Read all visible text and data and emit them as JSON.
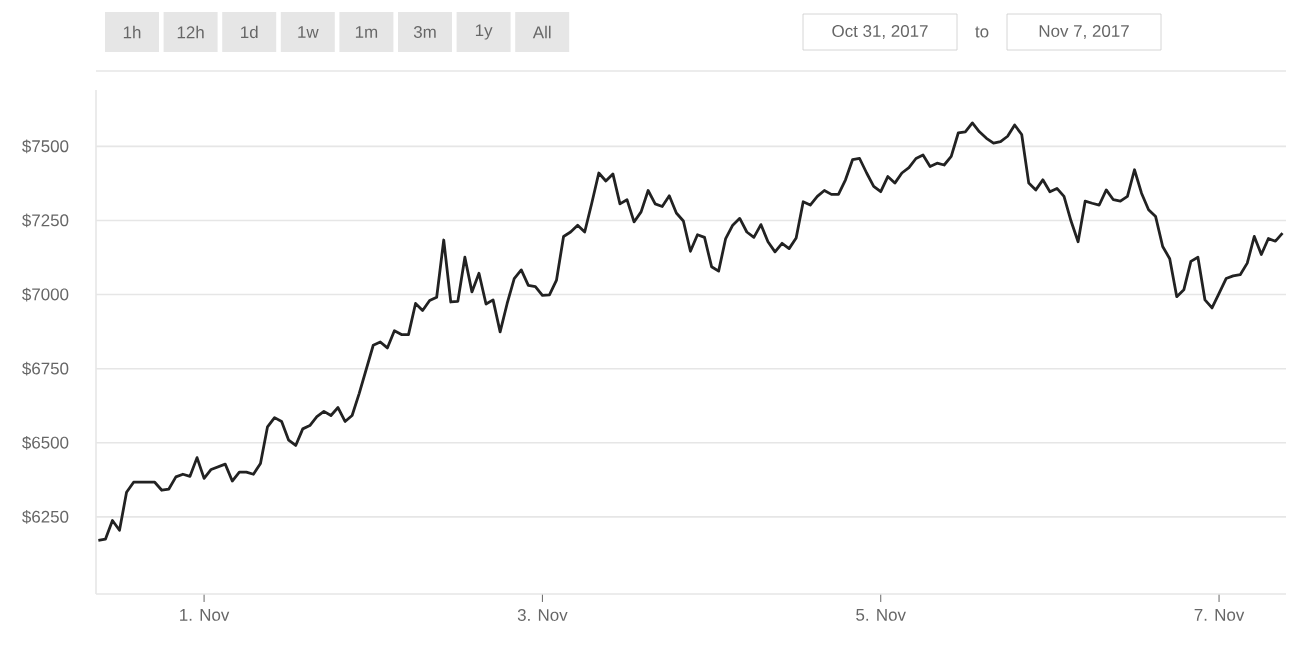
{
  "chart_data": {
    "type": "line",
    "annotations": [
      "1h",
      "12h",
      "1d",
      "1w",
      "1m",
      "3m",
      "1y",
      "All",
      "Oct 31, 2017",
      "to",
      "Nov 7, 2017"
    ],
    "x": [
      "2017-10-31T09:00",
      "2017-10-31T10:00",
      "2017-10-31T11:00",
      "2017-10-31T12:00",
      "2017-10-31T13:00",
      "2017-10-31T14:00",
      "2017-10-31T17:00",
      "2017-10-31T18:00",
      "2017-10-31T19:00",
      "2017-10-31T20:00",
      "2017-10-31T21:00",
      "2017-10-31T22:00",
      "2017-10-31T23:00",
      "2017-11-01T00:00",
      "2017-11-01T01:00",
      "2017-11-01T03:00",
      "2017-11-01T04:00",
      "2017-11-01T05:00",
      "2017-11-01T06:00",
      "2017-11-01T07:00",
      "2017-11-01T08:00",
      "2017-11-01T09:00",
      "2017-11-01T10:00",
      "2017-11-01T11:00",
      "2017-11-01T12:00",
      "2017-11-01T13:00",
      "2017-11-01T14:00",
      "2017-11-01T15:00",
      "2017-11-01T16:00",
      "2017-11-01T17:00",
      "2017-11-01T18:00",
      "2017-11-01T19:00",
      "2017-11-01T20:00",
      "2017-11-01T21:00",
      "2017-11-01T22:00",
      "2017-11-02T00:00",
      "2017-11-02T01:00",
      "2017-11-02T02:00",
      "2017-11-02T03:00",
      "2017-11-02T04:00",
      "2017-11-02T05:00",
      "2017-11-02T06:00",
      "2017-11-02T07:00",
      "2017-11-02T08:00",
      "2017-11-02T09:00",
      "2017-11-02T10:00",
      "2017-11-02T11:00",
      "2017-11-02T12:00",
      "2017-11-02T13:00",
      "2017-11-02T14:00",
      "2017-11-02T15:00",
      "2017-11-02T16:00",
      "2017-11-02T17:00",
      "2017-11-02T18:00",
      "2017-11-02T19:00",
      "2017-11-02T20:00",
      "2017-11-02T21:00",
      "2017-11-02T22:00",
      "2017-11-02T23:00",
      "2017-11-03T00:00",
      "2017-11-03T01:00",
      "2017-11-03T02:00",
      "2017-11-03T03:00",
      "2017-11-03T04:00",
      "2017-11-03T05:00",
      "2017-11-03T06:00",
      "2017-11-03T07:00",
      "2017-11-03T08:00",
      "2017-11-03T09:00",
      "2017-11-03T10:00",
      "2017-11-03T11:00",
      "2017-11-03T12:00",
      "2017-11-03T13:00",
      "2017-11-03T14:00",
      "2017-11-03T15:00",
      "2017-11-03T16:00",
      "2017-11-03T17:00",
      "2017-11-03T18:00",
      "2017-11-03T19:00",
      "2017-11-03T20:00",
      "2017-11-03T21:00",
      "2017-11-03T22:00",
      "2017-11-03T23:00",
      "2017-11-04T00:00",
      "2017-11-04T01:00",
      "2017-11-04T02:00",
      "2017-11-04T03:00",
      "2017-11-04T04:00",
      "2017-11-04T05:00",
      "2017-11-04T06:00",
      "2017-11-04T07:00",
      "2017-11-04T08:00",
      "2017-11-04T09:00",
      "2017-11-04T10:00",
      "2017-11-04T11:00",
      "2017-11-04T12:00",
      "2017-11-04T13:00",
      "2017-11-04T14:00",
      "2017-11-04T15:00",
      "2017-11-04T16:00",
      "2017-11-04T17:00",
      "2017-11-04T18:00",
      "2017-11-04T19:00",
      "2017-11-04T20:00",
      "2017-11-04T21:00",
      "2017-11-04T22:00",
      "2017-11-04T23:00",
      "2017-11-05T00:00",
      "2017-11-05T01:00",
      "2017-11-05T02:00",
      "2017-11-05T03:00",
      "2017-11-05T04:00",
      "2017-11-05T05:00",
      "2017-11-05T06:00",
      "2017-11-05T07:00",
      "2017-11-05T08:00",
      "2017-11-05T09:00",
      "2017-11-05T10:00",
      "2017-11-05T11:00",
      "2017-11-05T12:00",
      "2017-11-05T13:00",
      "2017-11-05T14:00",
      "2017-11-05T15:00",
      "2017-11-05T16:00",
      "2017-11-05T17:00",
      "2017-11-05T18:00",
      "2017-11-05T19:00",
      "2017-11-05T20:00",
      "2017-11-05T21:00",
      "2017-11-05T22:00",
      "2017-11-05T23:00",
      "2017-11-06T00:00",
      "2017-11-06T01:00",
      "2017-11-06T02:00",
      "2017-11-06T03:00",
      "2017-11-06T04:00",
      "2017-11-06T05:00",
      "2017-11-06T06:00",
      "2017-11-06T07:00",
      "2017-11-06T08:00",
      "2017-11-06T09:00",
      "2017-11-06T10:00",
      "2017-11-06T11:00",
      "2017-11-06T12:00",
      "2017-11-06T13:00",
      "2017-11-06T14:00",
      "2017-11-06T15:00",
      "2017-11-06T16:00",
      "2017-11-06T17:00",
      "2017-11-06T18:00",
      "2017-11-06T19:00",
      "2017-11-06T20:00",
      "2017-11-06T21:00",
      "2017-11-06T22:00",
      "2017-11-06T23:00",
      "2017-11-07T00:00",
      "2017-11-07T01:00",
      "2017-11-07T02:00",
      "2017-11-07T03:00",
      "2017-11-07T04:00",
      "2017-11-07T05:00",
      "2017-11-07T06:00",
      "2017-11-07T07:00",
      "2017-11-07T08:00",
      "2017-11-07T09:00"
    ],
    "values": [
      6171,
      6175,
      6238,
      6205,
      6333,
      6367,
      6367,
      6340,
      6344,
      6385,
      6394,
      6387,
      6450,
      6380,
      6410,
      6428,
      6371,
      6401,
      6401,
      6394,
      6430,
      6554,
      6585,
      6572,
      6509,
      6491,
      6547,
      6558,
      6588,
      6606,
      6592,
      6619,
      6572,
      6592,
      6666,
      6829,
      6840,
      6820,
      6878,
      6865,
      6865,
      6970,
      6946,
      6980,
      6991,
      7184,
      6975,
      6977,
      7126,
      7009,
      7072,
      6968,
      6982,
      6874,
      6970,
      7054,
      7083,
      7031,
      7027,
      6997,
      6999,
      7049,
      7196,
      7211,
      7234,
      7211,
      7308,
      7410,
      7383,
      7407,
      7306,
      7320,
      7245,
      7279,
      7351,
      7306,
      7297,
      7333,
      7275,
      7248,
      7146,
      7202,
      7193,
      7094,
      7079,
      7189,
      7234,
      7257,
      7211,
      7193,
      7236,
      7178,
      7144,
      7173,
      7155,
      7191,
      7313,
      7302,
      7331,
      7351,
      7338,
      7338,
      7387,
      7455,
      7459,
      7410,
      7365,
      7347,
      7398,
      7376,
      7410,
      7428,
      7459,
      7471,
      7432,
      7443,
      7437,
      7466,
      7545,
      7549,
      7579,
      7549,
      7527,
      7511,
      7516,
      7534,
      7572,
      7540,
      7376,
      7353,
      7387,
      7347,
      7358,
      7331,
      7248,
      7178,
      7315,
      7308,
      7302,
      7353,
      7320,
      7315,
      7331,
      7421,
      7342,
      7286,
      7263,
      7162,
      7121,
      6993,
      7016,
      7112,
      7126,
      6982,
      6955,
      7004,
      7054,
      7063,
      7067,
      7106,
      7196,
      7135,
      7189,
      7180,
      7207
    ],
    "color": "#222222",
    "xlim": [
      "2017-10-31T08:40",
      "2017-11-07T09:30"
    ],
    "xticks": [
      {
        "value": "2017-11-01",
        "label": "1. Nov"
      },
      {
        "value": "2017-11-03",
        "label": "3. Nov"
      },
      {
        "value": "2017-11-05",
        "label": "5. Nov"
      },
      {
        "value": "2017-11-07",
        "label": "7. Nov"
      }
    ],
    "ylim": [
      5990,
      7690
    ],
    "yticks": [
      {
        "value": 6250,
        "label": "$6250"
      },
      {
        "value": 6500,
        "label": "$6500"
      },
      {
        "value": 6750,
        "label": "$6750"
      },
      {
        "value": 7000,
        "label": "$7000"
      },
      {
        "value": 7250,
        "label": "$7250"
      },
      {
        "value": 7500,
        "label": "$7500"
      }
    ],
    "grid": "y"
  }
}
